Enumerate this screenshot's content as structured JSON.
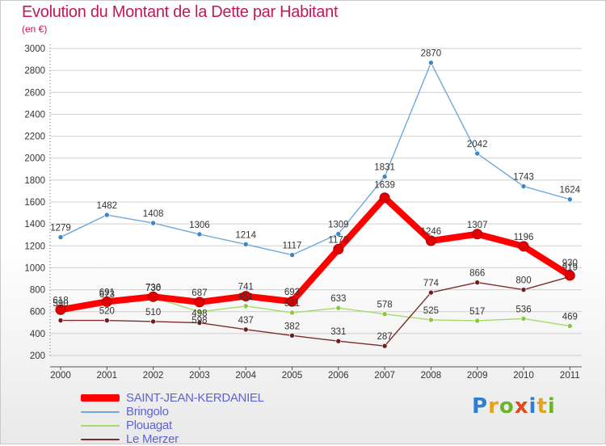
{
  "title": "Evolution du Montant de la Dette par Habitant",
  "subtitle": "(en €)",
  "logo": {
    "text": "Proxiti",
    "colors": [
      "#2f7fd1",
      "#e8a21a",
      "#6bb52a",
      "#e04a1c",
      "#2f7fd1",
      "#e8a21a",
      "#6bb52a"
    ]
  },
  "colors": {
    "title": "#c2185b",
    "axis_text": "#333333",
    "grid": "#cfcfcf",
    "legend_text": "#5d63d6"
  },
  "chart_data": {
    "type": "line",
    "title": "Evolution du Montant de la Dette par Habitant",
    "subtitle": "(en €)",
    "xlabel": "",
    "ylabel": "",
    "ylim": [
      200,
      3000
    ],
    "yticks": [
      200,
      400,
      600,
      800,
      1000,
      1200,
      1400,
      1600,
      1800,
      2000,
      2200,
      2400,
      2600,
      2800,
      3000
    ],
    "grid": true,
    "legend_position": "bottom-left",
    "categories": [
      "2000",
      "2001",
      "2002",
      "2003",
      "2004",
      "2005",
      "2006",
      "2007",
      "2008",
      "2009",
      "2010",
      "2011"
    ],
    "series": [
      {
        "name": "SAINT-JEAN-KERDANIEL",
        "color": "#ff0000",
        "marker_color": "#e00000",
        "line_width": 8,
        "values": [
          618,
          691,
          736,
          687,
          741,
          693,
          1170,
          1639,
          1246,
          1307,
          1196,
          930
        ],
        "labels": [
          "618",
          "691",
          "736",
          "687",
          "741",
          "693",
          "1170",
          "1639",
          "1246",
          "1307",
          "1196",
          "930"
        ]
      },
      {
        "name": "Bringolo",
        "color": "#6fa8dc",
        "marker_color": "#3d85c6",
        "line_width": 1.4,
        "values": [
          1279,
          1482,
          1408,
          1306,
          1214,
          1117,
          1309,
          1831,
          2870,
          2042,
          1743,
          1624
        ],
        "labels": [
          "1279",
          "1482",
          "1408",
          "1306",
          "1214",
          "1117",
          "1309",
          "1831",
          "2870",
          "2042",
          "1743",
          "1624"
        ]
      },
      {
        "name": "Plouagat",
        "color": "#a6d96a",
        "marker_color": "#8cc63f",
        "line_width": 1.4,
        "values": [
          590,
          673,
          730,
          598,
          651,
          591,
          633,
          578,
          525,
          517,
          536,
          469
        ],
        "labels": [
          "590",
          "673",
          "730",
          "598",
          "651",
          "591",
          "633",
          "578",
          "525",
          "517",
          "536",
          "469"
        ]
      },
      {
        "name": "Le Merzer",
        "color": "#7b2d2d",
        "marker_color": "#6b1f1f",
        "line_width": 1.4,
        "values": [
          520,
          520,
          510,
          498,
          437,
          382,
          331,
          287,
          774,
          866,
          800,
          919
        ],
        "labels": [
          "",
          "520",
          "510",
          "498",
          "437",
          "382",
          "331",
          "287",
          "774",
          "866",
          "800",
          "919"
        ]
      }
    ]
  }
}
